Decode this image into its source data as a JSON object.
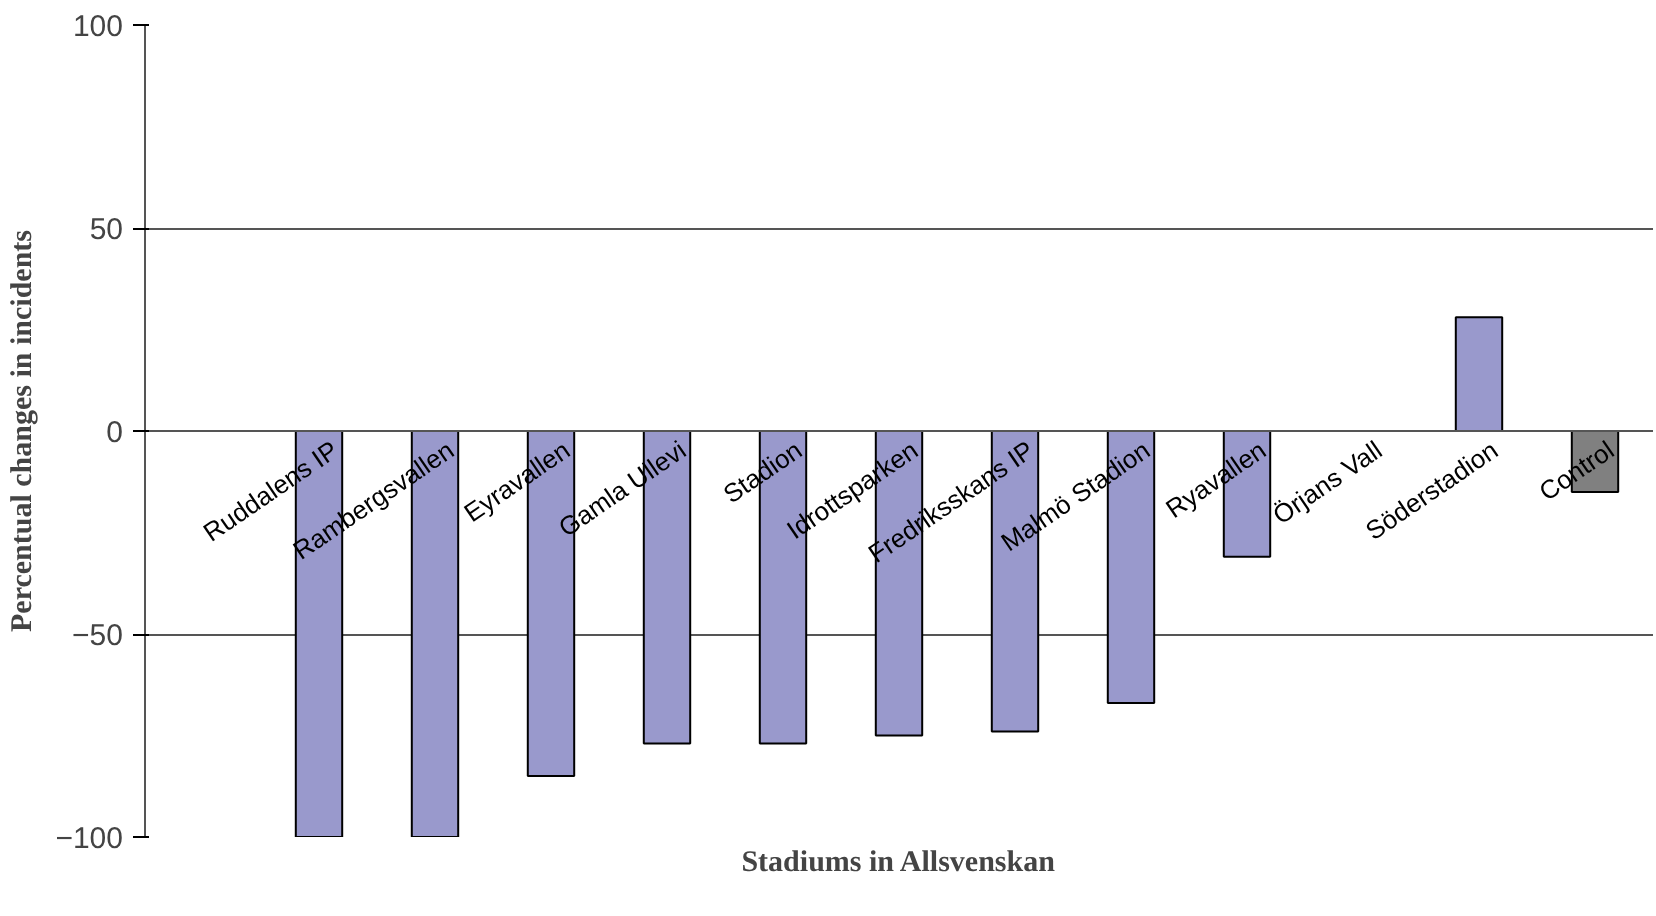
{
  "chart_data": {
    "type": "bar",
    "xlabel": "Stadiums in Allsvenskan",
    "ylabel": "Percentual changes in incidents",
    "categories": [
      "Ruddalens IP",
      "Rambergsvallen",
      "Eyravallen",
      "Gamla Ullevi",
      "Stadion",
      "Idrottsparken",
      "Fredriksskans IP",
      "Malmö Stadion",
      "Ryavallen",
      "Örjans Vall",
      "Söderstadion",
      "Control"
    ],
    "values": [
      -100,
      -100,
      -85,
      -77,
      -77,
      -75,
      -74,
      -67,
      -31,
      null,
      28,
      -15
    ],
    "colors": [
      "#9999cc",
      "#9999cc",
      "#9999cc",
      "#9999cc",
      "#9999cc",
      "#9999cc",
      "#9999cc",
      "#9999cc",
      "#9999cc",
      "#9999cc",
      "#9999cc",
      "#808080"
    ],
    "ylim": [
      -100,
      100
    ],
    "yticks": [
      -100,
      -50,
      0,
      50,
      100
    ],
    "grid": "y"
  }
}
